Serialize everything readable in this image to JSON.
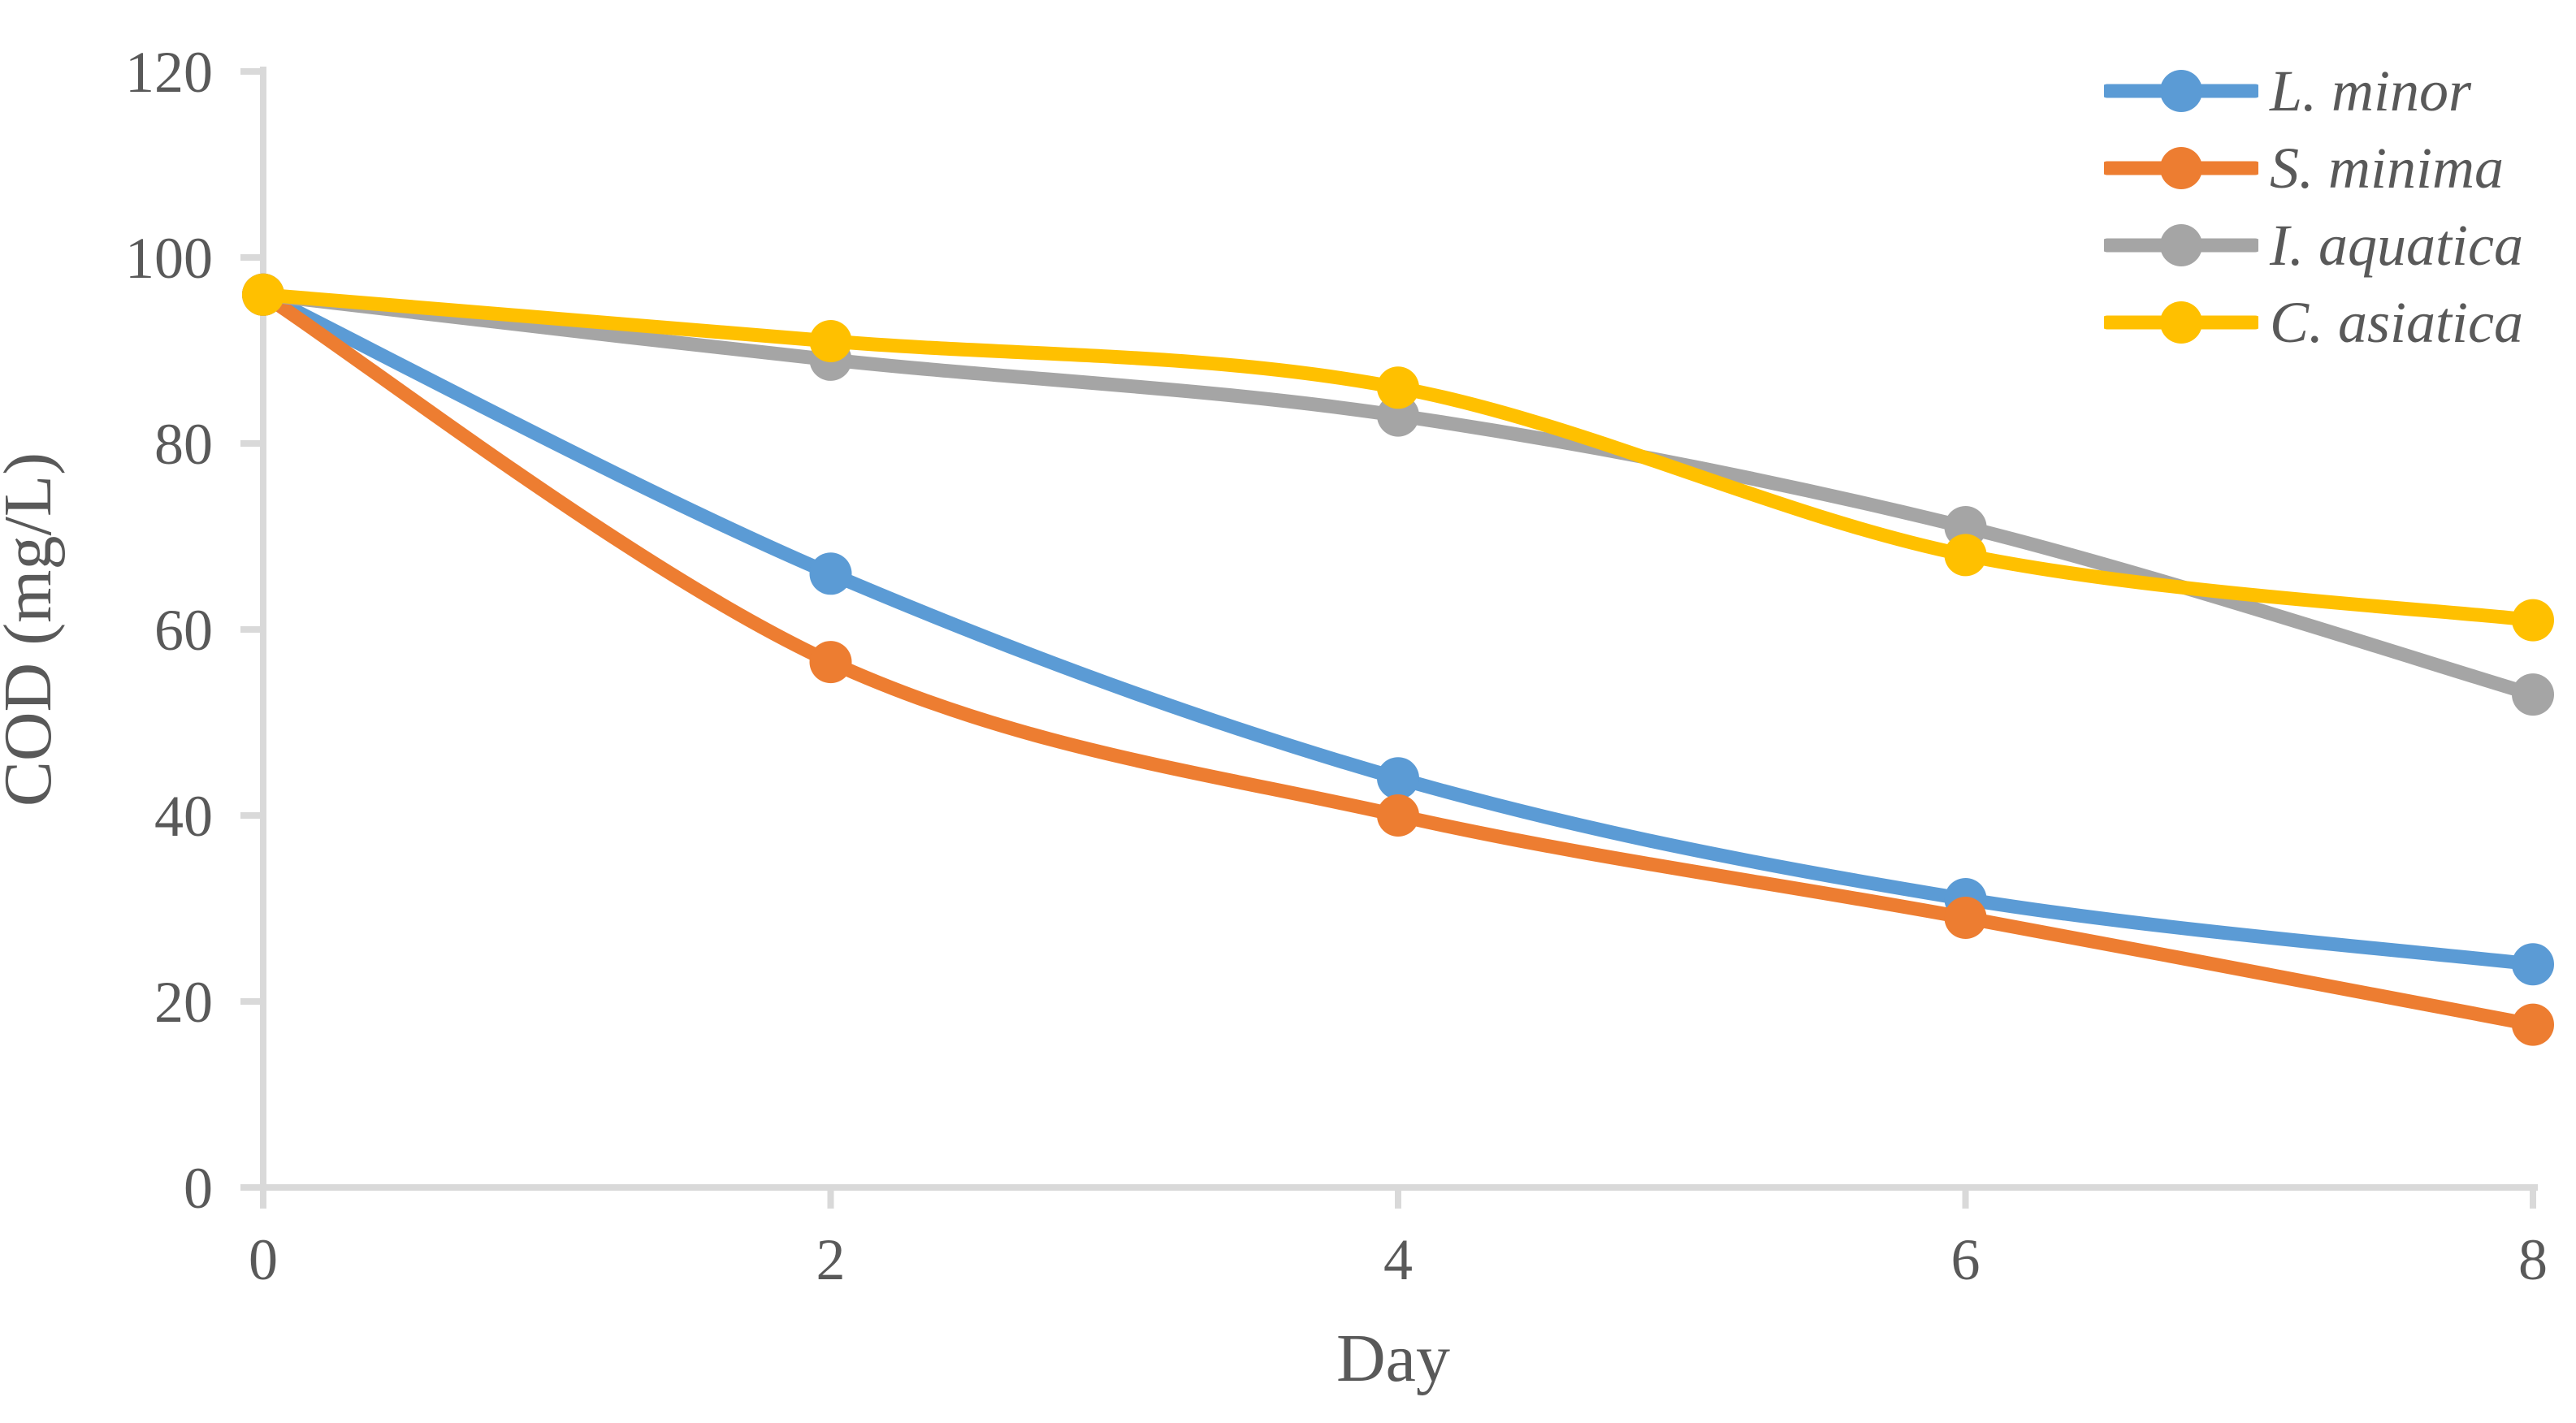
{
  "chart_data": {
    "type": "line",
    "x": [
      0,
      2,
      4,
      6,
      8
    ],
    "xticks": [
      0,
      2,
      4,
      6,
      8
    ],
    "yticks": [
      0,
      20,
      40,
      60,
      80,
      100,
      120
    ],
    "xlabel": "Day",
    "ylabel": "COD (mg/L)",
    "xlim": [
      0,
      8
    ],
    "ylim": [
      0,
      120
    ],
    "grid": false,
    "smoothed_lines": true,
    "legend_position": "top-right",
    "axis_color": "#D9D9D9",
    "text_color": "#595959",
    "series": [
      {
        "name": "L. minor",
        "color": "#5B9BD5",
        "values": [
          96,
          66,
          44,
          31,
          24
        ]
      },
      {
        "name": "S. minima",
        "color": "#ED7D31",
        "values": [
          96,
          56.5,
          40,
          29,
          17.5
        ]
      },
      {
        "name": "I. aquatica",
        "color": "#A5A5A5",
        "values": [
          96,
          89,
          83,
          71,
          53
        ]
      },
      {
        "name": "C. asiatica",
        "color": "#FFC000",
        "values": [
          96,
          91,
          86,
          68,
          61
        ]
      }
    ]
  }
}
